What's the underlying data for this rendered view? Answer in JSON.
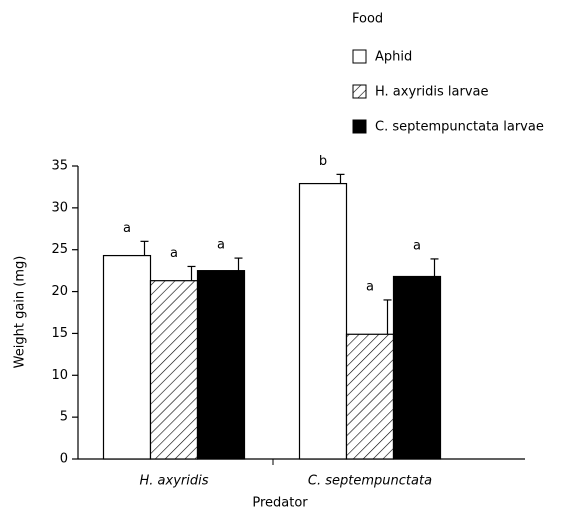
{
  "chart_data": {
    "type": "bar",
    "legend_title": "Food",
    "categories": [
      "H. axyridis",
      "C. septempunctata"
    ],
    "series": [
      {
        "name": "Aphid",
        "color": "#ffffff",
        "hatch": false,
        "values": [
          24.3,
          32.9
        ],
        "errors": [
          1.7,
          1.1
        ],
        "labels": [
          "a",
          "b"
        ]
      },
      {
        "name": "H. axyridis larvae",
        "color": "#ffffff",
        "hatch": true,
        "values": [
          21.3,
          14.9
        ],
        "errors": [
          1.7,
          4.1
        ],
        "labels": [
          "a",
          "a"
        ]
      },
      {
        "name": "C. septempunctata larvae",
        "color": "#000000",
        "hatch": false,
        "values": [
          22.5,
          21.8
        ],
        "errors": [
          1.5,
          2.1
        ],
        "labels": [
          "a",
          "a"
        ]
      }
    ],
    "xlabel": "Predator",
    "ylabel": "Weight gain (mg)",
    "ylim": [
      0,
      35
    ],
    "yticks": [
      0,
      5,
      10,
      15,
      20,
      25,
      30,
      35
    ]
  }
}
